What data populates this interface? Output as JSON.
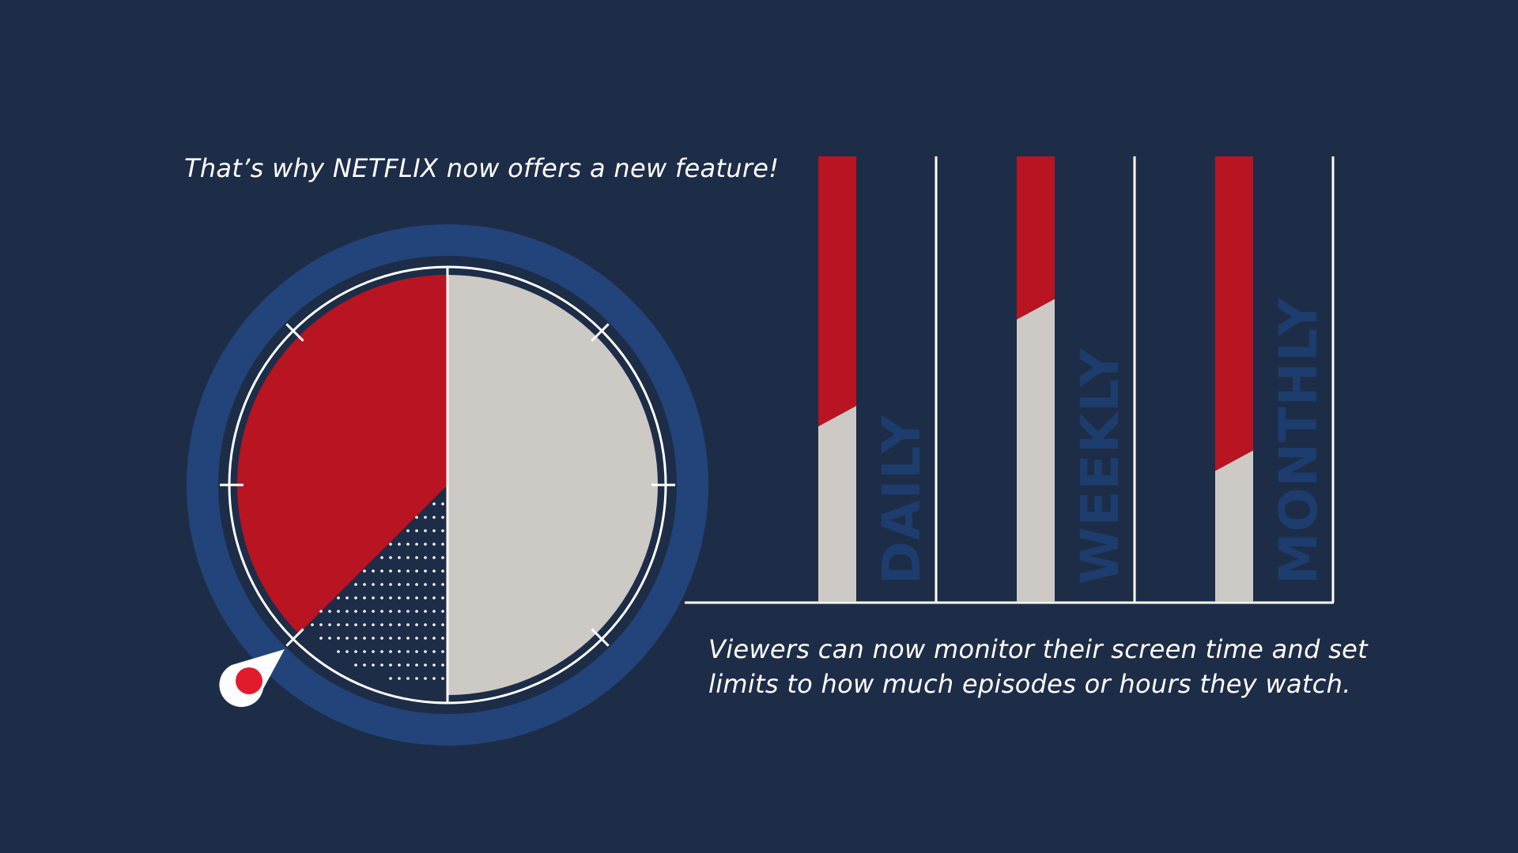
{
  "headline": "That’s why NETFLIX now offers a new feature!",
  "description": {
    "line1": "Viewers can now monitor their screen time and set",
    "line2": "limits to how much episodes or hours they watch."
  },
  "colors": {
    "background": "#1e2d47",
    "ring": "#22447a",
    "accent_red": "#b81422",
    "light_gray": "#cdcac5",
    "label_blue": "#1c3d6d",
    "line_white": "#ffffff"
  },
  "clock": {
    "red_sector_fraction": 0.375,
    "dotted_sector_fraction": 0.125,
    "gray_sector_fraction": 0.5,
    "tick_count": 8,
    "marker_icon": "map-pin-icon"
  },
  "bars": [
    {
      "label": "DAILY",
      "red_fraction": 0.56
    },
    {
      "label": "WEEKLY",
      "red_fraction": 0.32
    },
    {
      "label": "MONTHLY",
      "red_fraction": 0.66
    }
  ]
}
